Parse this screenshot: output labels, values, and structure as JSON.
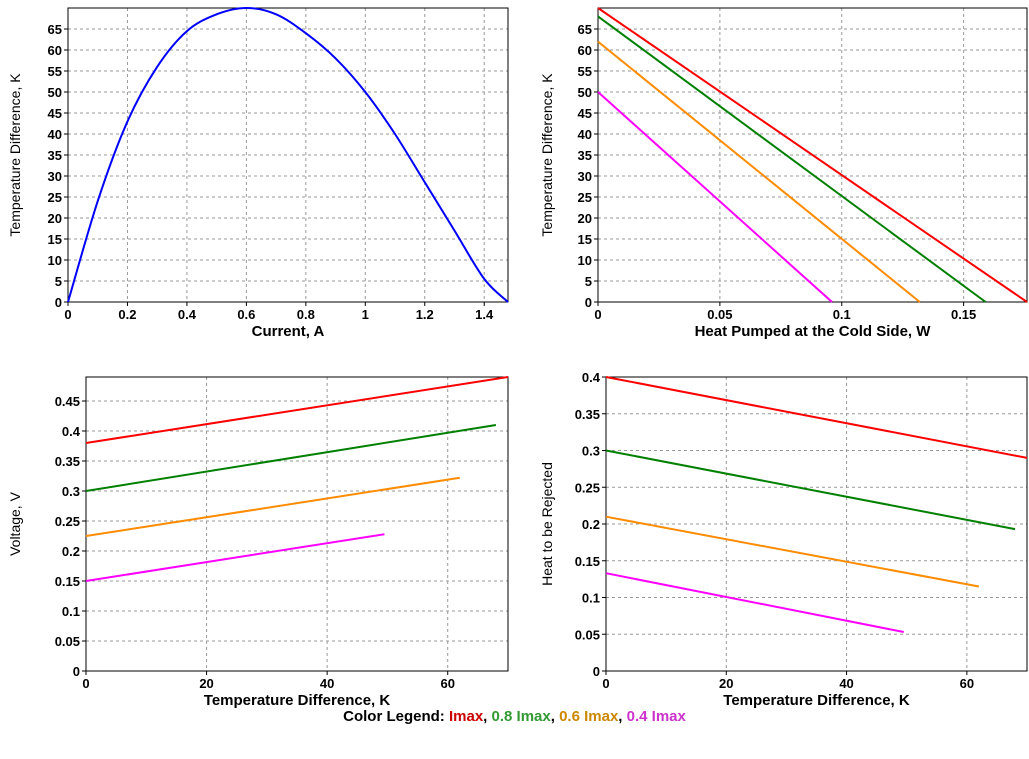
{
  "chart_data": [
    {
      "type": "line",
      "xlabel": "Current, A",
      "ylabel": "Temperature Difference, K",
      "xlim": [
        0,
        1.48
      ],
      "ylim": [
        0,
        70
      ],
      "xticks": [
        0,
        0.2,
        0.4,
        0.6,
        0.8,
        1,
        1.2,
        1.4
      ],
      "xtick_labels": [
        "0",
        "0.2",
        "0.4",
        "0.6",
        "0.8",
        "1",
        "1.2",
        "1.4"
      ],
      "yticks": [
        0,
        5,
        10,
        15,
        20,
        25,
        30,
        35,
        40,
        45,
        50,
        55,
        60,
        65
      ],
      "ytick_labels": [
        "0",
        "5",
        "10",
        "15",
        "20",
        "25",
        "30",
        "35",
        "40",
        "45",
        "50",
        "55",
        "60",
        "65"
      ],
      "grid": true,
      "series": [
        {
          "color": "#0000ff",
          "x": [
            0,
            0.1,
            0.2,
            0.3,
            0.4,
            0.5,
            0.6,
            0.7,
            0.8,
            0.9,
            1.0,
            1.1,
            1.2,
            1.3,
            1.4,
            1.48
          ],
          "y": [
            0,
            24,
            43,
            56,
            64.5,
            68.5,
            70,
            68.5,
            64,
            58,
            50,
            40,
            28.5,
            17,
            5.5,
            0
          ]
        }
      ]
    },
    {
      "type": "line",
      "xlabel": "Heat Pumped at the Cold Side, W",
      "ylabel": "Temperature Difference, K",
      "xlim": [
        0,
        0.176
      ],
      "ylim": [
        0,
        70
      ],
      "xticks": [
        0,
        0.05,
        0.1,
        0.15
      ],
      "xtick_labels": [
        "0",
        "0.05",
        "0.1",
        "0.15"
      ],
      "yticks": [
        0,
        5,
        10,
        15,
        20,
        25,
        30,
        35,
        40,
        45,
        50,
        55,
        60,
        65
      ],
      "ytick_labels": [
        "0",
        "5",
        "10",
        "15",
        "20",
        "25",
        "30",
        "35",
        "40",
        "45",
        "50",
        "55",
        "60",
        "65"
      ],
      "grid": true,
      "series": [
        {
          "color": "#ff0000",
          "x": [
            0,
            0.176
          ],
          "y": [
            70,
            0
          ]
        },
        {
          "color": "#008000",
          "x": [
            0,
            0.159
          ],
          "y": [
            68,
            0
          ]
        },
        {
          "color": "#ff8c00",
          "x": [
            0,
            0.132
          ],
          "y": [
            62,
            0
          ]
        },
        {
          "color": "#ff00ff",
          "x": [
            0,
            0.096
          ],
          "y": [
            50,
            0
          ]
        }
      ]
    },
    {
      "type": "line",
      "xlabel": "Temperature Difference, K",
      "ylabel": "Voltage, V",
      "xlim": [
        0,
        70
      ],
      "ylim": [
        0,
        0.49
      ],
      "xticks": [
        0,
        20,
        40,
        60
      ],
      "xtick_labels": [
        "0",
        "20",
        "40",
        "60"
      ],
      "yticks": [
        0,
        0.05,
        0.1,
        0.15,
        0.2,
        0.25,
        0.3,
        0.35,
        0.4,
        0.45
      ],
      "ytick_labels": [
        "0",
        "0.05",
        "0.1",
        "0.15",
        "0.2",
        "0.25",
        "0.3",
        "0.35",
        "0.4",
        "0.45"
      ],
      "grid": true,
      "series": [
        {
          "color": "#ff0000",
          "x": [
            0,
            70
          ],
          "y": [
            0.38,
            0.49
          ]
        },
        {
          "color": "#008000",
          "x": [
            0,
            68
          ],
          "y": [
            0.3,
            0.41
          ]
        },
        {
          "color": "#ff8c00",
          "x": [
            0,
            62
          ],
          "y": [
            0.225,
            0.322
          ]
        },
        {
          "color": "#ff00ff",
          "x": [
            0,
            49.5
          ],
          "y": [
            0.15,
            0.228
          ]
        }
      ]
    },
    {
      "type": "line",
      "xlabel": "Temperature Difference, K",
      "ylabel": "Heat to be Rejected",
      "xlim": [
        0,
        70
      ],
      "ylim": [
        0,
        0.4
      ],
      "xticks": [
        0,
        20,
        40,
        60
      ],
      "xtick_labels": [
        "0",
        "20",
        "40",
        "60"
      ],
      "yticks": [
        0,
        0.05,
        0.1,
        0.15,
        0.2,
        0.25,
        0.3,
        0.35,
        0.4
      ],
      "ytick_labels": [
        "0",
        "0.05",
        "0.1",
        "0.15",
        "0.2",
        "0.25",
        "0.3",
        "0.35",
        "0.4"
      ],
      "grid": true,
      "series": [
        {
          "color": "#ff0000",
          "x": [
            0,
            70
          ],
          "y": [
            0.4,
            0.29
          ]
        },
        {
          "color": "#008000",
          "x": [
            0,
            68
          ],
          "y": [
            0.3,
            0.193
          ]
        },
        {
          "color": "#ff8c00",
          "x": [
            0,
            62
          ],
          "y": [
            0.21,
            0.115
          ]
        },
        {
          "color": "#ff00ff",
          "x": [
            0,
            49.5
          ],
          "y": [
            0.133,
            0.053
          ]
        }
      ]
    }
  ],
  "legend": {
    "title": "Color Legend:",
    "items": [
      {
        "label": "Imax",
        "color": "#cc0000"
      },
      {
        "label": "0.8 Imax",
        "color": "#339933"
      },
      {
        "label": "0.6 Imax",
        "color": "#cc8800"
      },
      {
        "label": "0.4 Imax",
        "color": "#cc33cc"
      }
    ],
    "separator": ", "
  }
}
